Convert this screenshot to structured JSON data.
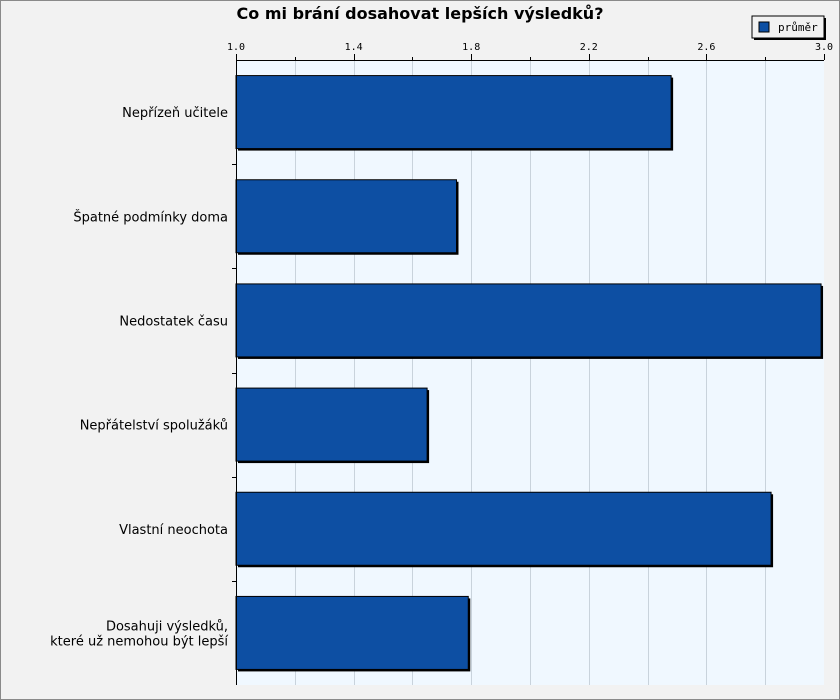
{
  "chart_data": {
    "type": "bar",
    "orientation": "horizontal",
    "title": "Co mi brání dosahovat lepších výsledků?",
    "categories": [
      [
        "Nepřízeň učitele"
      ],
      [
        "Špatné podmínky doma"
      ],
      [
        "Nedostatek času"
      ],
      [
        "Nepřátelství spolužáků"
      ],
      [
        "Vlastní neochota"
      ],
      [
        "Dosahuji výsledků,",
        "které už nemohou být lepší"
      ]
    ],
    "series": [
      {
        "name": "průměr",
        "values": [
          2.48,
          1.75,
          2.99,
          1.65,
          2.82,
          1.79
        ]
      }
    ],
    "xlim": [
      1.0,
      3.0
    ],
    "x_ticks": [
      "1.0",
      "1.4",
      "1.8",
      "2.2",
      "2.6",
      "3.0"
    ],
    "grid": true,
    "legend_position": "top-right",
    "colors": {
      "bar": "#0d4fa3",
      "plot_background": "#f0f8ff",
      "grid": "#c9d3dc"
    }
  }
}
